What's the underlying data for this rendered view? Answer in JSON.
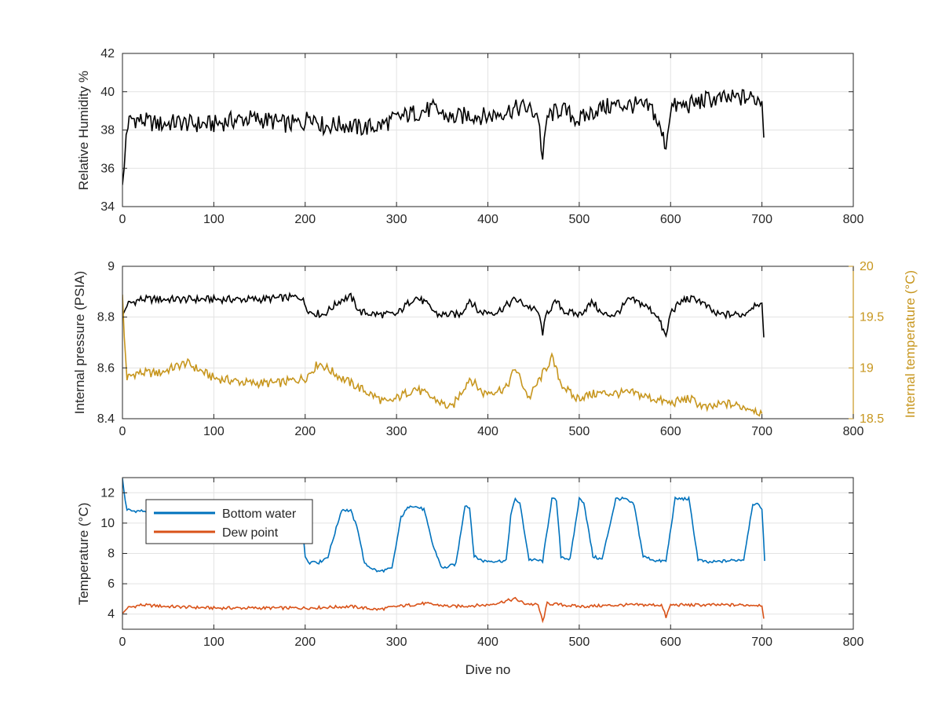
{
  "chart_data": [
    {
      "type": "line",
      "xlabel": "",
      "ylabel": "Relative Humidity %",
      "xlim": [
        0,
        800
      ],
      "ylim": [
        34,
        42
      ],
      "xticks": [
        "0",
        "100",
        "200",
        "300",
        "400",
        "500",
        "600",
        "700",
        "800"
      ],
      "yticks": [
        "34",
        "36",
        "38",
        "40",
        "42"
      ],
      "grid": true,
      "series": [
        {
          "color": "#000000",
          "x": [
            0,
            2,
            4,
            6,
            10,
            20,
            40,
            60,
            80,
            100,
            120,
            140,
            160,
            180,
            200,
            205,
            220,
            240,
            260,
            280,
            300,
            320,
            340,
            360,
            380,
            400,
            420,
            440,
            455,
            460,
            465,
            480,
            500,
            520,
            540,
            560,
            580,
            595,
            600,
            620,
            640,
            660,
            680,
            700,
            702
          ],
          "y": [
            34.9,
            36.0,
            37.8,
            38.3,
            38.6,
            38.5,
            38.3,
            38.4,
            38.3,
            38.3,
            38.5,
            38.6,
            38.5,
            38.3,
            38.4,
            38.9,
            38.2,
            38.3,
            38.1,
            38.2,
            38.6,
            38.9,
            39.1,
            38.6,
            38.8,
            38.7,
            39.0,
            39.2,
            38.8,
            36.4,
            38.7,
            39.1,
            38.5,
            39.1,
            39.3,
            39.3,
            39.1,
            37.2,
            39.2,
            39.3,
            39.6,
            39.6,
            39.7,
            39.6,
            37.6
          ]
        }
      ]
    },
    {
      "type": "line",
      "xlabel": "",
      "ylabel": "Internal pressure (PSIA)",
      "y2label": "Internal temperature (°C)",
      "xlim": [
        0,
        800
      ],
      "ylim": [
        8.4,
        9
      ],
      "y2lim": [
        18.5,
        20
      ],
      "xticks": [
        "0",
        "100",
        "200",
        "300",
        "400",
        "500",
        "600",
        "700",
        "800"
      ],
      "yticks": [
        "8.4",
        "8.6",
        "8.8",
        "9"
      ],
      "y2ticks": [
        "18.5",
        "19",
        "19.5",
        "20"
      ],
      "grid": true,
      "y2_color": "#C7961E",
      "series": [
        {
          "axis": "left",
          "color": "#000000",
          "x": [
            0,
            5,
            20,
            50,
            100,
            150,
            195,
            205,
            220,
            240,
            250,
            260,
            280,
            300,
            320,
            330,
            345,
            370,
            380,
            390,
            410,
            430,
            440,
            455,
            460,
            465,
            475,
            485,
            500,
            515,
            525,
            540,
            555,
            570,
            585,
            595,
            600,
            615,
            630,
            650,
            680,
            695,
            700,
            702
          ],
          "y": [
            8.8,
            8.85,
            8.87,
            8.87,
            8.87,
            8.87,
            8.88,
            8.82,
            8.81,
            8.87,
            8.88,
            8.82,
            8.81,
            8.81,
            8.88,
            8.86,
            8.81,
            8.81,
            8.87,
            8.82,
            8.82,
            8.87,
            8.85,
            8.82,
            8.74,
            8.82,
            8.86,
            8.82,
            8.81,
            8.86,
            8.81,
            8.81,
            8.87,
            8.85,
            8.81,
            8.72,
            8.82,
            8.87,
            8.87,
            8.81,
            8.81,
            8.86,
            8.84,
            8.72
          ]
        },
        {
          "axis": "right",
          "color": "#C7961E",
          "x": [
            0,
            2,
            5,
            15,
            40,
            70,
            100,
            140,
            170,
            200,
            215,
            240,
            270,
            290,
            320,
            340,
            360,
            380,
            395,
            420,
            430,
            445,
            470,
            480,
            495,
            520,
            540,
            560,
            580,
            600,
            620,
            640,
            660,
            690,
            700
          ],
          "y": [
            19.7,
            19.3,
            18.9,
            18.95,
            18.95,
            19.05,
            18.9,
            18.85,
            18.85,
            18.9,
            19.05,
            18.9,
            18.75,
            18.65,
            18.8,
            18.7,
            18.6,
            18.9,
            18.75,
            18.8,
            19.0,
            18.7,
            19.1,
            18.85,
            18.7,
            18.75,
            18.75,
            18.75,
            18.7,
            18.65,
            18.7,
            18.6,
            18.65,
            18.6,
            18.55
          ]
        }
      ]
    },
    {
      "type": "line",
      "xlabel": "Dive no",
      "ylabel": "Temperature (°C)",
      "xlim": [
        0,
        800
      ],
      "ylim": [
        3,
        13
      ],
      "xticks": [
        "0",
        "100",
        "200",
        "300",
        "400",
        "500",
        "600",
        "700",
        "800"
      ],
      "yticks": [
        "4",
        "6",
        "8",
        "10",
        "12"
      ],
      "grid": true,
      "legend": "top-left",
      "series": [
        {
          "name": "Bottom water",
          "color": "#0072BD",
          "x": [
            0,
            3,
            5,
            10,
            30,
            60,
            100,
            150,
            195,
            200,
            205,
            210,
            215,
            225,
            240,
            250,
            258,
            265,
            280,
            295,
            305,
            315,
            330,
            340,
            350,
            365,
            375,
            380,
            385,
            395,
            420,
            425,
            430,
            435,
            445,
            460,
            470,
            475,
            480,
            490,
            500,
            505,
            515,
            525,
            540,
            550,
            560,
            570,
            585,
            595,
            605,
            620,
            630,
            640,
            680,
            690,
            695,
            700,
            703
          ],
          "y": [
            12.9,
            11.5,
            10.9,
            10.8,
            10.8,
            10.8,
            10.8,
            10.8,
            10.8,
            7.8,
            7.4,
            7.5,
            7.4,
            7.8,
            10.9,
            10.8,
            9.5,
            7.3,
            6.8,
            7.0,
            10.4,
            11.2,
            10.9,
            8.5,
            7.0,
            7.3,
            11.2,
            11.0,
            7.8,
            7.5,
            7.5,
            10.5,
            11.6,
            11.3,
            7.6,
            7.5,
            11.6,
            11.5,
            7.8,
            7.6,
            11.6,
            11.4,
            7.8,
            7.6,
            11.6,
            11.6,
            11.2,
            7.8,
            7.5,
            7.5,
            11.6,
            11.6,
            7.6,
            7.4,
            7.6,
            11.3,
            11.2,
            11.0,
            7.5
          ]
        },
        {
          "name": "Dew point",
          "color": "#D95319",
          "x": [
            0,
            5,
            20,
            50,
            100,
            150,
            200,
            250,
            280,
            300,
            330,
            360,
            400,
            430,
            440,
            455,
            460,
            465,
            500,
            550,
            590,
            595,
            600,
            650,
            700,
            702
          ],
          "y": [
            4.0,
            4.4,
            4.6,
            4.5,
            4.4,
            4.4,
            4.4,
            4.5,
            4.3,
            4.5,
            4.7,
            4.5,
            4.6,
            5.0,
            4.7,
            4.6,
            3.5,
            4.7,
            4.5,
            4.6,
            4.6,
            3.8,
            4.6,
            4.6,
            4.6,
            3.7
          ]
        }
      ]
    }
  ]
}
